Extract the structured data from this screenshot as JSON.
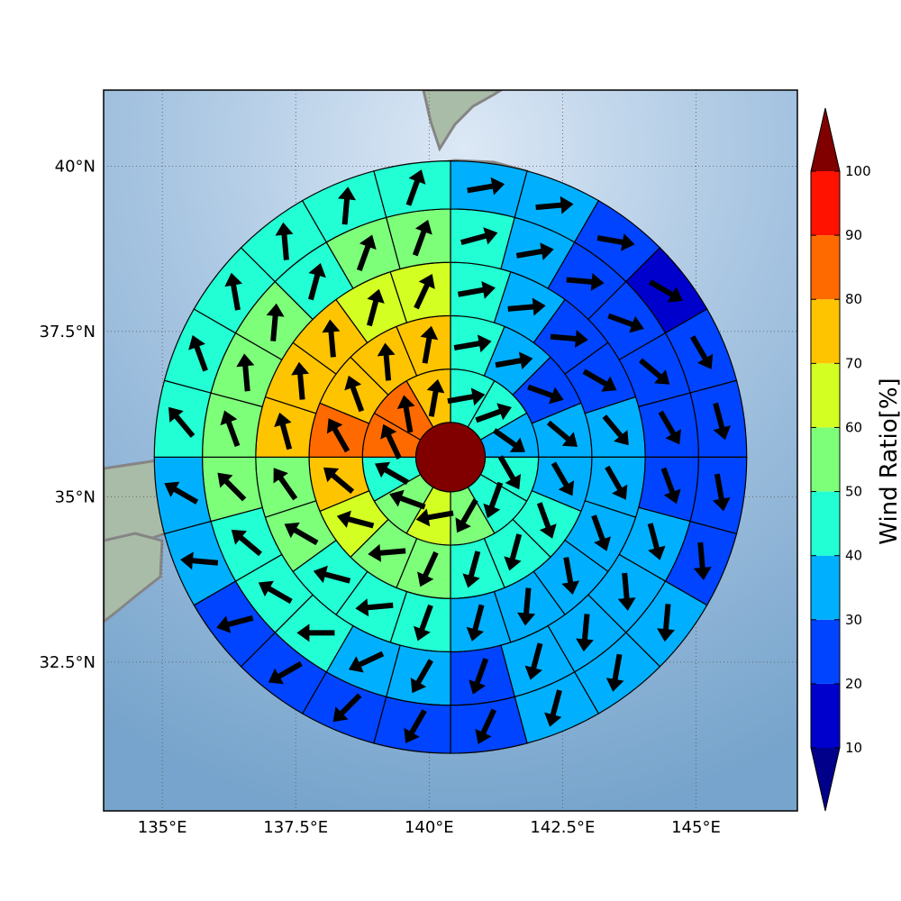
{
  "map": {
    "lon_range": [
      133.9,
      146.9
    ],
    "lat_range": [
      30.25,
      41.15
    ],
    "center": {
      "lon": 140.4,
      "lat": 35.6
    },
    "ring_radii_deg": [
      0.65,
      1.65,
      2.65,
      3.65,
      4.65,
      5.55
    ],
    "grid_lines": true,
    "xtick_labels": [
      {
        "lon": 135,
        "label": "135°E"
      },
      {
        "lon": 137.5,
        "label": "137.5°E"
      },
      {
        "lon": 140,
        "label": "140°E"
      },
      {
        "lon": 142.5,
        "label": "142.5°E"
      },
      {
        "lon": 145,
        "label": "145°E"
      }
    ],
    "ytick_labels": [
      {
        "lat": 32.5,
        "label": "32.5°N"
      },
      {
        "lat": 35,
        "label": "35°N"
      },
      {
        "lat": 37.5,
        "label": "37.5°N"
      },
      {
        "lat": 40,
        "label": "40°N"
      }
    ],
    "inner_circle": {
      "level": 100
    },
    "rings": [
      {
        "sectors": 12,
        "levels": [
          40,
          40,
          30,
          40,
          40,
          50,
          60,
          50,
          40,
          80,
          80,
          70
        ],
        "arrow_dir_deg": [
          80,
          70,
          125,
          150,
          200,
          210,
          260,
          290,
          300,
          335,
          350,
          10
        ]
      },
      {
        "sectors": 16,
        "levels": [
          40,
          30,
          20,
          30,
          30,
          40,
          40,
          40,
          50,
          50,
          60,
          70,
          80,
          70,
          70,
          70
        ],
        "arrow_dir_deg": [
          80,
          80,
          110,
          130,
          150,
          160,
          195,
          195,
          205,
          265,
          285,
          310,
          330,
          340,
          355,
          10
        ]
      },
      {
        "sectors": 20,
        "levels": [
          40,
          30,
          20,
          20,
          30,
          30,
          30,
          30,
          30,
          30,
          40,
          40,
          40,
          50,
          50,
          70,
          70,
          70,
          60,
          60
        ],
        "arrow_dir_deg": [
          80,
          85,
          95,
          120,
          140,
          150,
          160,
          170,
          185,
          195,
          200,
          265,
          285,
          300,
          325,
          345,
          355,
          355,
          15,
          25
        ]
      },
      {
        "sectors": 24,
        "levels": [
          40,
          30,
          20,
          20,
          20,
          20,
          20,
          30,
          30,
          30,
          30,
          20,
          30,
          30,
          40,
          40,
          40,
          50,
          50,
          50,
          50,
          40,
          50,
          50
        ],
        "arrow_dir_deg": [
          75,
          80,
          95,
          110,
          130,
          150,
          160,
          165,
          175,
          185,
          195,
          200,
          210,
          245,
          270,
          300,
          310,
          315,
          340,
          355,
          5,
          15,
          20,
          20
        ]
      },
      {
        "sectors": 24,
        "levels": [
          30,
          30,
          20,
          10,
          20,
          20,
          20,
          20,
          30,
          30,
          30,
          20,
          20,
          20,
          20,
          20,
          30,
          30,
          40,
          40,
          40,
          40,
          40,
          40
        ],
        "arrow_dir_deg": [
          80,
          85,
          100,
          120,
          150,
          165,
          170,
          175,
          185,
          190,
          195,
          205,
          210,
          225,
          240,
          255,
          275,
          300,
          320,
          340,
          350,
          355,
          5,
          20
        ]
      }
    ]
  },
  "colorbar": {
    "label": "Wind Ratio[%]",
    "levels": [
      10,
      20,
      30,
      40,
      50,
      60,
      70,
      80,
      90,
      100
    ],
    "colors": [
      "#0000cc",
      "#0044ff",
      "#00b0ff",
      "#22ffd4",
      "#7dff7a",
      "#d4ff22",
      "#ffc400",
      "#ff6a00",
      "#ff1200"
    ],
    "under_color": "#00008b",
    "over_color": "#800000"
  }
}
